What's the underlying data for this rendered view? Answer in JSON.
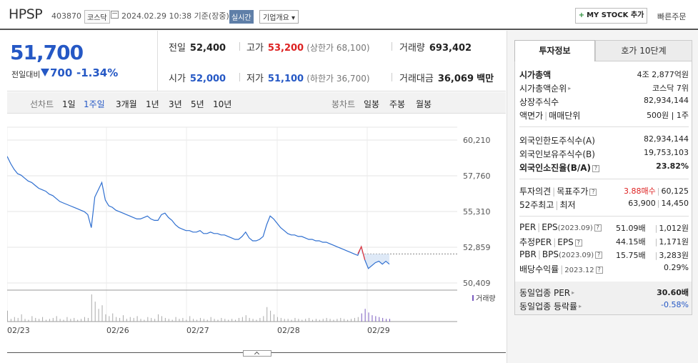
{
  "header": {
    "name": "HPSP",
    "code": "403870",
    "market": "코스닥",
    "date": "2024.02.29 10:38 기준(장중)",
    "live": "실시간",
    "overview": "기업개요 ▾",
    "mystock": "MY STOCK 추가",
    "quick": "빠른주문"
  },
  "price": {
    "current": "51,700",
    "change_label": "전일대비",
    "change": "700",
    "change_pct": "-1.34%",
    "prev_label": "전일",
    "prev": "52,400",
    "high_label": "고가",
    "high": "53,200",
    "upper_limit": "(상한가 68,100)",
    "volume_label": "거래량",
    "volume": "693,402",
    "open_label": "시가",
    "open": "52,000",
    "low_label": "저가",
    "low": "51,100",
    "lower_limit": "(하한가 36,700)",
    "amount_label": "거래대금",
    "amount": "36,069",
    "amount_unit": "백만"
  },
  "period_bar": {
    "line_label": "선차트",
    "line_periods": [
      "1일",
      "1주일",
      "3개월",
      "1년",
      "3년",
      "5년",
      "10년"
    ],
    "selected": "1주일",
    "candle_label": "봉차트",
    "candle_periods": [
      "일봉",
      "주봉",
      "월봉"
    ]
  },
  "chart_data": {
    "type": "line",
    "x_labels": [
      "02/23",
      "02/26",
      "02/27",
      "02/28",
      "02/29"
    ],
    "y_ticks": [
      "60,210",
      "57,760",
      "55,310",
      "52,859",
      "50,409"
    ],
    "ylim": [
      50409,
      60210
    ],
    "prev_close": 52400,
    "series": [
      {
        "values": [
          59100,
          58600,
          58200,
          57900,
          57800,
          57600,
          57400,
          57300,
          57100,
          56900,
          56800,
          56700,
          56500,
          56400,
          56200,
          56000,
          55900,
          55800,
          55700,
          55600,
          55500,
          55400,
          55300,
          55100,
          54200,
          56300,
          56800,
          57300,
          56100,
          55700,
          55600,
          55400,
          55300,
          55200,
          55100,
          55000,
          54900,
          54800,
          54800,
          54900,
          55000,
          54800,
          54700,
          54700,
          55100,
          55200,
          54900,
          54700,
          54400,
          54200,
          54100,
          54000,
          54000,
          53900,
          53900,
          54000,
          53800,
          53800,
          53900,
          53800,
          53800,
          53700,
          53700,
          53600,
          53500,
          53400,
          53400,
          53600,
          53900,
          53500,
          53300,
          53300,
          53400,
          53600,
          54400,
          55000,
          54800,
          54500,
          54200,
          54000,
          53800,
          53700,
          53700,
          53600,
          53600,
          53500,
          53400,
          53400,
          53300,
          53300,
          53200,
          53200,
          53100,
          53000,
          52900,
          52800,
          52700,
          52600,
          52500,
          52400,
          52300,
          52900,
          52000,
          51400,
          51600,
          51800,
          51900,
          51700,
          51900,
          51700
        ]
      }
    ],
    "volume_label": "거래량",
    "volume": [
      12,
      3,
      5,
      4,
      8,
      3,
      2,
      6,
      4,
      3,
      5,
      2,
      3,
      4,
      6,
      3,
      2,
      5,
      3,
      4,
      2,
      3,
      5,
      4,
      30,
      22,
      14,
      18,
      8,
      6,
      9,
      5,
      4,
      7,
      3,
      5,
      4,
      6,
      3,
      2,
      5,
      4,
      3,
      8,
      6,
      4,
      3,
      2,
      5,
      3,
      4,
      2,
      6,
      3,
      2,
      4,
      3,
      2,
      5,
      3,
      2,
      4,
      3,
      2,
      3,
      2,
      4,
      5,
      7,
      4,
      3,
      2,
      4,
      6,
      16,
      12,
      8,
      5,
      4,
      3,
      3,
      2,
      4,
      3,
      2,
      3,
      4,
      2,
      3,
      2,
      3,
      4,
      3,
      2,
      3,
      4,
      3,
      2,
      3,
      4,
      5,
      9,
      14,
      10,
      7,
      6,
      5,
      4,
      3,
      3
    ]
  },
  "panel": {
    "tab_active": "투자정보",
    "tab_other": "호가 10단계",
    "market_cap_label": "시가총액",
    "market_cap": "4조 2,877억원",
    "cap_rank_label": "시가총액순위",
    "cap_rank": "코스닥 7위",
    "shares_label": "상장주식수",
    "shares": "82,934,144",
    "par_label": "액면가",
    "unit_label": "매매단위",
    "par_unit": "500원 | 1주",
    "foreign_limit_label": "외국인한도주식수(A)",
    "foreign_limit": "82,934,144",
    "foreign_hold_label": "외국인보유주식수(B)",
    "foreign_hold": "19,753,103",
    "foreign_ratio_label": "외국인소진율(B/A)",
    "foreign_ratio": "23.82%",
    "opinion_label": "투자의견",
    "target_label": "목표주가",
    "opinion": "3.88매수",
    "target": "60,125",
    "w52_label": "52주최고",
    "low52_label": "최저",
    "high52": "63,900",
    "low52": "14,450",
    "per_label": "PER",
    "eps_label": "EPS",
    "per_year": "(2023.09)",
    "per": "51.09배",
    "eps": "1,012원",
    "est_per_label": "추정PER",
    "est_eps_label": "EPS",
    "est_per": "44.15배",
    "est_eps": "1,171원",
    "pbr_label": "PBR",
    "bps_label": "BPS",
    "pbr_year": "(2023.09)",
    "pbr": "15.75배",
    "bps": "3,283원",
    "div_label": "배당수익률",
    "div_year": "2023.12",
    "div": "0.29%",
    "ind_per_label": "동일업종 PER",
    "ind_per": "30.60배",
    "ind_chg_label": "동일업종 등락률",
    "ind_chg": "-0.58%",
    "q": "?",
    "arrow": "▸"
  }
}
